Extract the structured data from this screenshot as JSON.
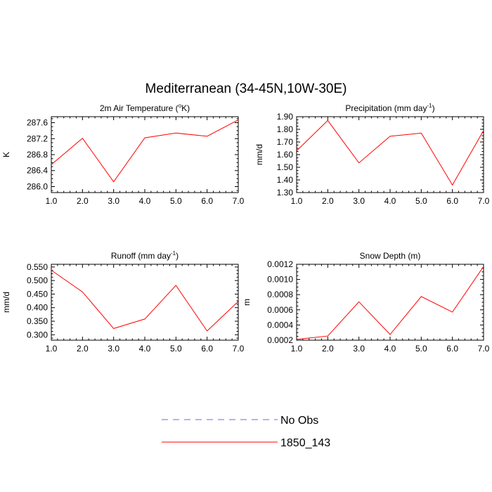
{
  "title": "Mediterranean (34-45N,10W-30E)",
  "chart_data": [
    {
      "type": "line",
      "title": "2m Air Temperature (",
      "title_sup": "o",
      "title_end": "K)",
      "ylabel": "K",
      "x": [
        1,
        2,
        3,
        4,
        5,
        6,
        7
      ],
      "xticks": [
        "1.0",
        "2.0",
        "3.0",
        "4.0",
        "5.0",
        "6.0",
        "7.0"
      ],
      "xlim": [
        1,
        7
      ],
      "ylim": [
        285.85,
        287.75
      ],
      "yticks": [
        286.0,
        286.4,
        286.8,
        287.2,
        287.6
      ],
      "ytick_labels": [
        "286.0",
        "286.4",
        "286.8",
        "287.2",
        "287.6"
      ],
      "series": [
        {
          "name": "1850_143",
          "color": "#ff0000",
          "values": [
            286.55,
            287.21,
            286.12,
            287.22,
            287.34,
            287.26,
            287.67
          ]
        }
      ]
    },
    {
      "type": "line",
      "title": "Precipitation (mm day",
      "title_sup": "-1",
      "title_end": ")",
      "ylabel": "mm/d",
      "x": [
        1,
        2,
        3,
        4,
        5,
        6,
        7
      ],
      "xticks": [
        "1.0",
        "2.0",
        "3.0",
        "4.0",
        "5.0",
        "6.0",
        "7.0"
      ],
      "xlim": [
        1,
        7
      ],
      "ylim": [
        1.3,
        1.9
      ],
      "yticks": [
        1.3,
        1.4,
        1.5,
        1.6,
        1.7,
        1.8,
        1.9
      ],
      "ytick_labels": [
        "1.30",
        "1.40",
        "1.50",
        "1.60",
        "1.70",
        "1.80",
        "1.90"
      ],
      "series": [
        {
          "name": "1850_143",
          "color": "#ff0000",
          "values": [
            1.63,
            1.87,
            1.535,
            1.745,
            1.77,
            1.36,
            1.79
          ]
        }
      ]
    },
    {
      "type": "line",
      "title": "Runoff (mm day",
      "title_sup": "-1",
      "title_end": ")",
      "ylabel": "mm/d",
      "x": [
        1,
        2,
        3,
        4,
        5,
        6,
        7
      ],
      "xticks": [
        "1.0",
        "2.0",
        "3.0",
        "4.0",
        "5.0",
        "6.0",
        "7.0"
      ],
      "xlim": [
        1,
        7
      ],
      "ylim": [
        0.28,
        0.56
      ],
      "yticks": [
        0.3,
        0.35,
        0.4,
        0.45,
        0.5,
        0.55
      ],
      "ytick_labels": [
        "0.300",
        "0.350",
        "0.400",
        "0.450",
        "0.500",
        "0.550"
      ],
      "series": [
        {
          "name": "1850_143",
          "color": "#ff0000",
          "values": [
            0.538,
            0.458,
            0.323,
            0.358,
            0.482,
            0.314,
            0.423
          ]
        }
      ]
    },
    {
      "type": "line",
      "title": "Snow Depth (m)",
      "title_sup": "",
      "title_end": "",
      "ylabel": "m",
      "x": [
        1,
        2,
        3,
        4,
        5,
        6,
        7
      ],
      "xticks": [
        "1.0",
        "2.0",
        "3.0",
        "4.0",
        "5.0",
        "6.0",
        "7.0"
      ],
      "xlim": [
        1,
        7
      ],
      "ylim": [
        0.0002,
        0.0012
      ],
      "yticks": [
        0.0002,
        0.0004,
        0.0006,
        0.0008,
        0.001,
        0.0012
      ],
      "ytick_labels": [
        "0.0002",
        "0.0004",
        "0.0006",
        "0.0008",
        "0.0010",
        "0.0012"
      ],
      "series": [
        {
          "name": "1850_143",
          "color": "#ff0000",
          "values": [
            0.00021,
            0.000255,
            0.000705,
            0.000275,
            0.000775,
            0.00057,
            0.00117
          ]
        }
      ]
    }
  ],
  "legend": [
    {
      "label": "No Obs",
      "color": "#6666ff",
      "style": "dashed"
    },
    {
      "label": "1850_143",
      "color": "#ff0000",
      "style": "solid"
    }
  ]
}
